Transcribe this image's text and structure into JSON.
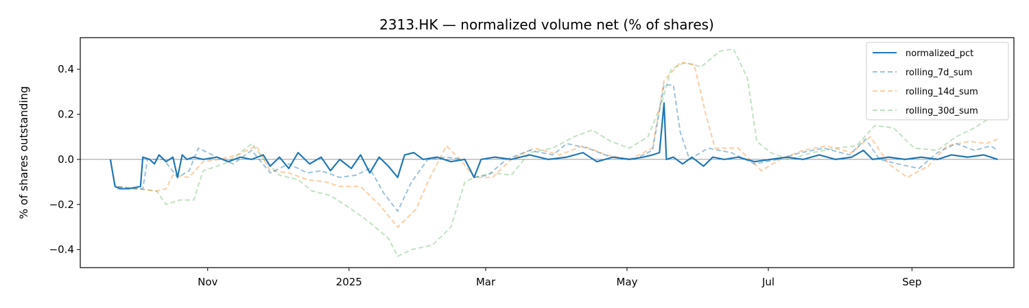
{
  "chart_data": {
    "type": "line",
    "title": "2313.HK — normalized volume net (% of shares)",
    "xlabel": "",
    "ylabel": "% of shares outstanding",
    "x_range": [
      "2024-09-07",
      "2025-10-15"
    ],
    "ylim": [
      -0.48,
      0.54
    ],
    "x_ticks": [
      {
        "date": "2024-11-01",
        "label": "Nov"
      },
      {
        "date": "2025-01-01",
        "label": "2025"
      },
      {
        "date": "2025-03-01",
        "label": "Mar"
      },
      {
        "date": "2025-05-01",
        "label": "May"
      },
      {
        "date": "2025-07-01",
        "label": "Jul"
      },
      {
        "date": "2025-09-01",
        "label": "Sep"
      }
    ],
    "y_ticks": [
      {
        "value": -0.4,
        "label": "−0.4"
      },
      {
        "value": -0.2,
        "label": "−0.2"
      },
      {
        "value": 0.0,
        "label": "0.0"
      },
      {
        "value": 0.2,
        "label": "0.2"
      },
      {
        "value": 0.4,
        "label": "0.4"
      }
    ],
    "zero_line": true,
    "grid": false,
    "legend_position": "top-right",
    "series": [
      {
        "name": "normalized_pct",
        "color": "#1f77b4",
        "style": "solid",
        "points": [
          [
            "2024-09-20",
            0.0
          ],
          [
            "2024-09-22",
            -0.12
          ],
          [
            "2024-09-24",
            -0.13
          ],
          [
            "2024-09-28",
            -0.13
          ],
          [
            "2024-10-03",
            -0.12
          ],
          [
            "2024-10-04",
            0.01
          ],
          [
            "2024-10-07",
            0.0
          ],
          [
            "2024-10-09",
            -0.02
          ],
          [
            "2024-10-11",
            0.02
          ],
          [
            "2024-10-14",
            -0.01
          ],
          [
            "2024-10-17",
            0.01
          ],
          [
            "2024-10-19",
            -0.08
          ],
          [
            "2024-10-21",
            0.02
          ],
          [
            "2024-10-23",
            0.0
          ],
          [
            "2024-10-26",
            0.01
          ],
          [
            "2024-10-30",
            0.0
          ],
          [
            "2024-11-05",
            0.01
          ],
          [
            "2024-11-10",
            -0.01
          ],
          [
            "2024-11-15",
            0.01
          ],
          [
            "2024-11-20",
            0.0
          ],
          [
            "2024-11-25",
            0.02
          ],
          [
            "2024-11-28",
            -0.03
          ],
          [
            "2024-12-02",
            0.01
          ],
          [
            "2024-12-06",
            -0.04
          ],
          [
            "2024-12-10",
            0.03
          ],
          [
            "2024-12-15",
            -0.02
          ],
          [
            "2024-12-20",
            0.01
          ],
          [
            "2024-12-24",
            -0.05
          ],
          [
            "2024-12-28",
            0.0
          ],
          [
            "2025-01-02",
            -0.04
          ],
          [
            "2025-01-06",
            0.02
          ],
          [
            "2025-01-10",
            -0.06
          ],
          [
            "2025-01-14",
            0.01
          ],
          [
            "2025-01-18",
            -0.03
          ],
          [
            "2025-01-22",
            -0.08
          ],
          [
            "2025-01-25",
            0.02
          ],
          [
            "2025-01-29",
            0.03
          ],
          [
            "2025-02-02",
            0.0
          ],
          [
            "2025-02-08",
            0.01
          ],
          [
            "2025-02-14",
            -0.01
          ],
          [
            "2025-02-20",
            0.0
          ],
          [
            "2025-02-24",
            -0.08
          ],
          [
            "2025-02-27",
            0.0
          ],
          [
            "2025-03-05",
            0.01
          ],
          [
            "2025-03-12",
            0.0
          ],
          [
            "2025-03-20",
            0.02
          ],
          [
            "2025-03-28",
            0.0
          ],
          [
            "2025-04-05",
            0.01
          ],
          [
            "2025-04-12",
            0.03
          ],
          [
            "2025-04-18",
            -0.01
          ],
          [
            "2025-04-25",
            0.01
          ],
          [
            "2025-05-02",
            0.0
          ],
          [
            "2025-05-08",
            0.01
          ],
          [
            "2025-05-12",
            0.02
          ],
          [
            "2025-05-15",
            0.03
          ],
          [
            "2025-05-17",
            0.25
          ],
          [
            "2025-05-18",
            0.0
          ],
          [
            "2025-05-21",
            0.01
          ],
          [
            "2025-05-25",
            -0.02
          ],
          [
            "2025-05-29",
            0.01
          ],
          [
            "2025-06-03",
            -0.03
          ],
          [
            "2025-06-07",
            0.01
          ],
          [
            "2025-06-12",
            0.0
          ],
          [
            "2025-06-18",
            0.01
          ],
          [
            "2025-06-25",
            -0.01
          ],
          [
            "2025-07-02",
            0.0
          ],
          [
            "2025-07-09",
            0.01
          ],
          [
            "2025-07-16",
            0.0
          ],
          [
            "2025-07-23",
            0.02
          ],
          [
            "2025-07-30",
            0.0
          ],
          [
            "2025-08-06",
            0.01
          ],
          [
            "2025-08-11",
            0.04
          ],
          [
            "2025-08-15",
            0.0
          ],
          [
            "2025-08-22",
            0.01
          ],
          [
            "2025-08-29",
            0.0
          ],
          [
            "2025-09-05",
            0.01
          ],
          [
            "2025-09-12",
            0.0
          ],
          [
            "2025-09-18",
            0.02
          ],
          [
            "2025-09-25",
            0.01
          ],
          [
            "2025-10-02",
            0.02
          ],
          [
            "2025-10-08",
            0.0
          ]
        ]
      },
      {
        "name": "rolling_7d_sum",
        "color": "#1f77b4",
        "opacity": 0.45,
        "style": "dashed",
        "points": [
          [
            "2024-09-20",
            0.0
          ],
          [
            "2024-09-22",
            -0.12
          ],
          [
            "2024-09-30",
            -0.13
          ],
          [
            "2024-10-04",
            -0.13
          ],
          [
            "2024-10-06",
            0.0
          ],
          [
            "2024-10-13",
            0.0
          ],
          [
            "2024-10-19",
            -0.08
          ],
          [
            "2024-10-24",
            -0.05
          ],
          [
            "2024-10-28",
            0.05
          ],
          [
            "2024-11-05",
            0.01
          ],
          [
            "2024-11-12",
            -0.02
          ],
          [
            "2024-11-20",
            0.04
          ],
          [
            "2024-11-28",
            -0.06
          ],
          [
            "2024-12-06",
            -0.02
          ],
          [
            "2024-12-14",
            -0.06
          ],
          [
            "2024-12-20",
            -0.05
          ],
          [
            "2024-12-28",
            -0.08
          ],
          [
            "2025-01-04",
            -0.07
          ],
          [
            "2025-01-10",
            -0.04
          ],
          [
            "2025-01-16",
            -0.15
          ],
          [
            "2025-01-22",
            -0.23
          ],
          [
            "2025-01-28",
            -0.1
          ],
          [
            "2025-02-04",
            0.0
          ],
          [
            "2025-02-12",
            0.01
          ],
          [
            "2025-02-20",
            0.0
          ],
          [
            "2025-02-24",
            -0.08
          ],
          [
            "2025-03-02",
            -0.07
          ],
          [
            "2025-03-10",
            0.0
          ],
          [
            "2025-03-20",
            0.04
          ],
          [
            "2025-03-30",
            0.02
          ],
          [
            "2025-04-05",
            0.07
          ],
          [
            "2025-04-14",
            0.05
          ],
          [
            "2025-04-24",
            0.01
          ],
          [
            "2025-05-04",
            0.0
          ],
          [
            "2025-05-12",
            0.04
          ],
          [
            "2025-05-17",
            0.33
          ],
          [
            "2025-05-21",
            0.33
          ],
          [
            "2025-05-24",
            0.12
          ],
          [
            "2025-05-28",
            0.0
          ],
          [
            "2025-06-05",
            0.05
          ],
          [
            "2025-06-15",
            0.03
          ],
          [
            "2025-06-25",
            -0.02
          ],
          [
            "2025-07-05",
            0.0
          ],
          [
            "2025-07-15",
            0.03
          ],
          [
            "2025-07-25",
            0.05
          ],
          [
            "2025-08-05",
            0.02
          ],
          [
            "2025-08-12",
            0.09
          ],
          [
            "2025-08-18",
            0.0
          ],
          [
            "2025-08-26",
            -0.02
          ],
          [
            "2025-09-04",
            -0.04
          ],
          [
            "2025-09-12",
            0.03
          ],
          [
            "2025-09-20",
            0.07
          ],
          [
            "2025-09-28",
            0.04
          ],
          [
            "2025-10-05",
            0.06
          ],
          [
            "2025-10-08",
            0.04
          ]
        ]
      },
      {
        "name": "rolling_14d_sum",
        "color": "#ff7f0e",
        "opacity": 0.4,
        "style": "dashed",
        "points": [
          [
            "2024-09-20",
            0.0
          ],
          [
            "2024-09-22",
            -0.12
          ],
          [
            "2024-10-10",
            -0.14
          ],
          [
            "2024-10-14",
            -0.13
          ],
          [
            "2024-10-17",
            -0.07
          ],
          [
            "2024-10-24",
            -0.08
          ],
          [
            "2024-10-30",
            -0.01
          ],
          [
            "2024-11-06",
            0.0
          ],
          [
            "2024-11-14",
            0.02
          ],
          [
            "2024-11-22",
            0.06
          ],
          [
            "2024-11-28",
            -0.05
          ],
          [
            "2024-12-06",
            -0.06
          ],
          [
            "2024-12-14",
            -0.09
          ],
          [
            "2024-12-22",
            -0.1
          ],
          [
            "2024-12-28",
            -0.12
          ],
          [
            "2025-01-06",
            -0.12
          ],
          [
            "2025-01-14",
            -0.2
          ],
          [
            "2025-01-22",
            -0.3
          ],
          [
            "2025-01-30",
            -0.22
          ],
          [
            "2025-02-04",
            -0.1
          ],
          [
            "2025-02-12",
            0.06
          ],
          [
            "2025-02-18",
            0.0
          ],
          [
            "2025-02-24",
            -0.08
          ],
          [
            "2025-03-04",
            -0.08
          ],
          [
            "2025-03-12",
            0.0
          ],
          [
            "2025-03-22",
            0.05
          ],
          [
            "2025-04-02",
            0.02
          ],
          [
            "2025-04-12",
            0.06
          ],
          [
            "2025-04-22",
            0.02
          ],
          [
            "2025-05-02",
            0.0
          ],
          [
            "2025-05-12",
            0.05
          ],
          [
            "2025-05-17",
            0.35
          ],
          [
            "2025-05-24",
            0.43
          ],
          [
            "2025-05-30",
            0.42
          ],
          [
            "2025-06-04",
            0.2
          ],
          [
            "2025-06-08",
            0.05
          ],
          [
            "2025-06-18",
            0.05
          ],
          [
            "2025-06-28",
            -0.05
          ],
          [
            "2025-07-06",
            0.0
          ],
          [
            "2025-07-16",
            0.04
          ],
          [
            "2025-07-26",
            0.06
          ],
          [
            "2025-08-06",
            0.03
          ],
          [
            "2025-08-14",
            0.1
          ],
          [
            "2025-08-22",
            -0.02
          ],
          [
            "2025-08-30",
            -0.08
          ],
          [
            "2025-09-08",
            -0.03
          ],
          [
            "2025-09-16",
            0.06
          ],
          [
            "2025-09-26",
            0.08
          ],
          [
            "2025-10-03",
            0.07
          ],
          [
            "2025-10-08",
            0.09
          ]
        ]
      },
      {
        "name": "rolling_30d_sum",
        "color": "#2ca02c",
        "opacity": 0.3,
        "style": "dashed",
        "points": [
          [
            "2024-09-20",
            0.0
          ],
          [
            "2024-09-22",
            -0.12
          ],
          [
            "2024-10-10",
            -0.14
          ],
          [
            "2024-10-14",
            -0.2
          ],
          [
            "2024-10-20",
            -0.18
          ],
          [
            "2024-10-26",
            -0.18
          ],
          [
            "2024-10-30",
            -0.05
          ],
          [
            "2024-11-08",
            -0.02
          ],
          [
            "2024-11-14",
            0.02
          ],
          [
            "2024-11-20",
            0.07
          ],
          [
            "2024-11-26",
            -0.01
          ],
          [
            "2024-12-02",
            -0.07
          ],
          [
            "2024-12-10",
            -0.09
          ],
          [
            "2024-12-16",
            -0.14
          ],
          [
            "2024-12-24",
            -0.16
          ],
          [
            "2025-01-02",
            -0.22
          ],
          [
            "2025-01-10",
            -0.28
          ],
          [
            "2025-01-18",
            -0.35
          ],
          [
            "2025-01-22",
            -0.43
          ],
          [
            "2025-01-28",
            -0.4
          ],
          [
            "2025-02-06",
            -0.38
          ],
          [
            "2025-02-14",
            -0.3
          ],
          [
            "2025-02-20",
            -0.1
          ],
          [
            "2025-02-24",
            -0.08
          ],
          [
            "2025-03-04",
            -0.06
          ],
          [
            "2025-03-12",
            -0.07
          ],
          [
            "2025-03-20",
            0.03
          ],
          [
            "2025-03-30",
            0.05
          ],
          [
            "2025-04-08",
            0.1
          ],
          [
            "2025-04-16",
            0.13
          ],
          [
            "2025-04-24",
            0.08
          ],
          [
            "2025-05-02",
            0.05
          ],
          [
            "2025-05-10",
            0.1
          ],
          [
            "2025-05-16",
            0.25
          ],
          [
            "2025-05-20",
            0.4
          ],
          [
            "2025-05-26",
            0.43
          ],
          [
            "2025-06-02",
            0.41
          ],
          [
            "2025-06-10",
            0.48
          ],
          [
            "2025-06-16",
            0.49
          ],
          [
            "2025-06-22",
            0.36
          ],
          [
            "2025-06-26",
            0.08
          ],
          [
            "2025-07-02",
            0.03
          ],
          [
            "2025-07-10",
            0.0
          ],
          [
            "2025-07-20",
            0.03
          ],
          [
            "2025-07-30",
            0.05
          ],
          [
            "2025-08-08",
            0.06
          ],
          [
            "2025-08-16",
            0.15
          ],
          [
            "2025-08-24",
            0.14
          ],
          [
            "2025-09-02",
            0.05
          ],
          [
            "2025-09-12",
            0.04
          ],
          [
            "2025-09-20",
            0.1
          ],
          [
            "2025-09-28",
            0.14
          ],
          [
            "2025-10-04",
            0.18
          ],
          [
            "2025-10-08",
            0.2
          ]
        ]
      }
    ]
  }
}
